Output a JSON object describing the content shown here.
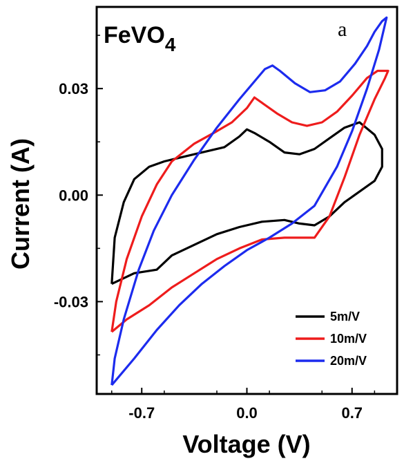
{
  "chart_data": {
    "type": "line",
    "title": "",
    "material": {
      "base": "FeVO",
      "subscript": "4"
    },
    "panel_label": "a",
    "xlabel": "Voltage (V)",
    "ylabel": "Current (A)",
    "xlim": [
      -1.0,
      1.0
    ],
    "ylim": [
      -0.056,
      0.053
    ],
    "x_ticks": [
      -0.7,
      0.0,
      0.7
    ],
    "x_tick_labels": [
      "-0.7",
      "0.0",
      "0.7"
    ],
    "y_ticks": [
      -0.03,
      0.0,
      0.03
    ],
    "y_tick_labels": [
      "-0.03",
      "0.00",
      "0.03"
    ],
    "legend_position": "bottom-right",
    "series": [
      {
        "name": "5m/V",
        "color": "#000000",
        "points": [
          [
            -0.9,
            -0.025
          ],
          [
            -0.75,
            -0.022
          ],
          [
            -0.6,
            -0.021
          ],
          [
            -0.5,
            -0.017
          ],
          [
            -0.35,
            -0.014
          ],
          [
            -0.2,
            -0.011
          ],
          [
            -0.05,
            -0.009
          ],
          [
            0.1,
            -0.0075
          ],
          [
            0.25,
            -0.007
          ],
          [
            0.35,
            -0.008
          ],
          [
            0.45,
            -0.0085
          ],
          [
            0.55,
            -0.006
          ],
          [
            0.65,
            -0.002
          ],
          [
            0.75,
            0.001
          ],
          [
            0.85,
            0.004
          ],
          [
            0.9,
            0.008
          ],
          [
            0.9,
            0.013
          ],
          [
            0.85,
            0.017
          ],
          [
            0.75,
            0.0205
          ],
          [
            0.65,
            0.019
          ],
          [
            0.55,
            0.016
          ],
          [
            0.45,
            0.013
          ],
          [
            0.35,
            0.0115
          ],
          [
            0.25,
            0.012
          ],
          [
            0.15,
            0.015
          ],
          [
            0.05,
            0.0175
          ],
          [
            0.0,
            0.0185
          ],
          [
            -0.05,
            0.0165
          ],
          [
            -0.15,
            0.0135
          ],
          [
            -0.3,
            0.012
          ],
          [
            -0.45,
            0.0105
          ],
          [
            -0.55,
            0.0095
          ],
          [
            -0.65,
            0.008
          ],
          [
            -0.75,
            0.0045
          ],
          [
            -0.82,
            -0.002
          ],
          [
            -0.88,
            -0.012
          ],
          [
            -0.9,
            -0.025
          ]
        ]
      },
      {
        "name": "10m/V",
        "color": "#ee1c1c",
        "points": [
          [
            -0.9,
            -0.0385
          ],
          [
            -0.8,
            -0.035
          ],
          [
            -0.65,
            -0.031
          ],
          [
            -0.5,
            -0.026
          ],
          [
            -0.35,
            -0.022
          ],
          [
            -0.2,
            -0.018
          ],
          [
            -0.05,
            -0.015
          ],
          [
            0.1,
            -0.0125
          ],
          [
            0.25,
            -0.012
          ],
          [
            0.35,
            -0.012
          ],
          [
            0.45,
            -0.012
          ],
          [
            0.55,
            -0.006
          ],
          [
            0.65,
            0.005
          ],
          [
            0.75,
            0.017
          ],
          [
            0.85,
            0.027
          ],
          [
            0.92,
            0.033
          ],
          [
            0.94,
            0.035
          ],
          [
            0.87,
            0.035
          ],
          [
            0.8,
            0.033
          ],
          [
            0.7,
            0.028
          ],
          [
            0.6,
            0.0235
          ],
          [
            0.5,
            0.0205
          ],
          [
            0.4,
            0.0195
          ],
          [
            0.3,
            0.0205
          ],
          [
            0.2,
            0.023
          ],
          [
            0.1,
            0.026
          ],
          [
            0.05,
            0.0275
          ],
          [
            0.0,
            0.0245
          ],
          [
            -0.1,
            0.0205
          ],
          [
            -0.2,
            0.018
          ],
          [
            -0.35,
            0.0145
          ],
          [
            -0.5,
            0.0095
          ],
          [
            -0.6,
            0.003
          ],
          [
            -0.7,
            -0.006
          ],
          [
            -0.8,
            -0.018
          ],
          [
            -0.87,
            -0.03
          ],
          [
            -0.9,
            -0.0385
          ]
        ]
      },
      {
        "name": "20m/V",
        "color": "#1c2bee",
        "points": [
          [
            -0.9,
            -0.0535
          ],
          [
            -0.75,
            -0.046
          ],
          [
            -0.6,
            -0.038
          ],
          [
            -0.45,
            -0.031
          ],
          [
            -0.3,
            -0.025
          ],
          [
            -0.15,
            -0.02
          ],
          [
            0.0,
            -0.0155
          ],
          [
            0.15,
            -0.012
          ],
          [
            0.3,
            -0.008
          ],
          [
            0.45,
            -0.003
          ],
          [
            0.6,
            0.008
          ],
          [
            0.7,
            0.018
          ],
          [
            0.8,
            0.03
          ],
          [
            0.88,
            0.041
          ],
          [
            0.93,
            0.05
          ],
          [
            0.9,
            0.049
          ],
          [
            0.85,
            0.046
          ],
          [
            0.8,
            0.042
          ],
          [
            0.72,
            0.037
          ],
          [
            0.62,
            0.032
          ],
          [
            0.52,
            0.0295
          ],
          [
            0.42,
            0.029
          ],
          [
            0.32,
            0.0315
          ],
          [
            0.22,
            0.035
          ],
          [
            0.17,
            0.0365
          ],
          [
            0.12,
            0.0355
          ],
          [
            0.05,
            0.032
          ],
          [
            -0.05,
            0.027
          ],
          [
            -0.2,
            0.019
          ],
          [
            -0.35,
            0.01
          ],
          [
            -0.5,
            0.0
          ],
          [
            -0.62,
            -0.01
          ],
          [
            -0.72,
            -0.021
          ],
          [
            -0.82,
            -0.035
          ],
          [
            -0.88,
            -0.046
          ],
          [
            -0.9,
            -0.0535
          ]
        ]
      }
    ]
  }
}
